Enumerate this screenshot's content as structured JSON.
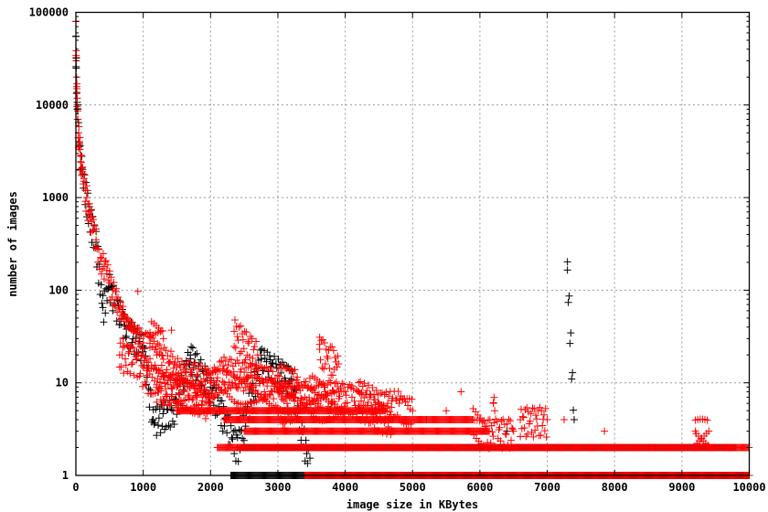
{
  "chart_data": {
    "type": "scatter",
    "title": "",
    "xlabel": "image size in KBytes",
    "ylabel": "number of images",
    "xlim": [
      0,
      10000
    ],
    "ylim": [
      1,
      100000
    ],
    "y_scale": "log",
    "grid": true,
    "legend": "none",
    "x_ticks": [
      "0",
      "1000",
      "2000",
      "3000",
      "4000",
      "5000",
      "6000",
      "7000",
      "8000",
      "9000",
      "10000"
    ],
    "y_ticks": [
      "1",
      "10",
      "100",
      "1000",
      "10000",
      "100000"
    ],
    "marker": "plus",
    "series": [
      {
        "color": "#000000",
        "points": [
          [
            0,
            55000
          ],
          [
            5,
            25000
          ],
          [
            20,
            9000
          ],
          [
            50,
            3800
          ],
          [
            100,
            1800
          ],
          [
            200,
            650
          ],
          [
            300,
            330
          ],
          [
            400,
            65
          ],
          [
            500,
            110
          ],
          [
            750,
            38
          ],
          [
            1000,
            25
          ],
          [
            1150,
            4
          ],
          [
            1450,
            5
          ],
          [
            1700,
            20
          ],
          [
            2000,
            9
          ],
          [
            2400,
            2
          ],
          [
            2750,
            18
          ],
          [
            2900,
            15
          ],
          [
            3200,
            11
          ],
          [
            3500,
            1
          ],
          [
            4500,
            6
          ],
          [
            5200,
            4
          ],
          [
            6400,
            3
          ],
          [
            7300,
            165
          ],
          [
            7400,
            4
          ],
          [
            8600,
            2
          ]
        ],
        "bands": [
          {
            "y": 1,
            "from": 2300,
            "to": 10000
          },
          {
            "y": 2,
            "from": 2450,
            "to": 9800
          }
        ]
      },
      {
        "color": "#ff0000",
        "points": [
          [
            0,
            80000
          ],
          [
            5,
            30000
          ],
          [
            10,
            20000
          ],
          [
            15,
            15000
          ],
          [
            20,
            10000
          ],
          [
            30,
            7000
          ],
          [
            40,
            5000
          ],
          [
            50,
            4000
          ],
          [
            60,
            3300
          ],
          [
            70,
            2800
          ],
          [
            80,
            2400
          ],
          [
            100,
            1900
          ],
          [
            120,
            1500
          ],
          [
            140,
            1200
          ],
          [
            160,
            1000
          ],
          [
            180,
            850
          ],
          [
            200,
            700
          ],
          [
            230,
            550
          ],
          [
            260,
            450
          ],
          [
            300,
            350
          ],
          [
            340,
            280
          ],
          [
            380,
            220
          ],
          [
            420,
            180
          ],
          [
            460,
            150
          ],
          [
            500,
            120
          ],
          [
            550,
            100
          ],
          [
            600,
            80
          ],
          [
            650,
            65
          ],
          [
            700,
            55
          ],
          [
            750,
            48
          ],
          [
            800,
            42
          ],
          [
            850,
            38
          ],
          [
            900,
            35
          ],
          [
            950,
            30
          ],
          [
            1000,
            27
          ],
          [
            1100,
            24
          ],
          [
            1200,
            20
          ],
          [
            1300,
            18
          ],
          [
            1400,
            17
          ],
          [
            1500,
            15
          ],
          [
            1600,
            14
          ],
          [
            1700,
            13
          ],
          [
            1800,
            12
          ],
          [
            1900,
            11
          ],
          [
            2000,
            10
          ],
          [
            2200,
            10
          ],
          [
            2400,
            9
          ],
          [
            2600,
            9
          ],
          [
            2800,
            8
          ],
          [
            3000,
            8
          ],
          [
            3200,
            7
          ],
          [
            3400,
            7
          ],
          [
            3600,
            6
          ],
          [
            3800,
            6
          ],
          [
            4000,
            6
          ],
          [
            920,
            97
          ],
          [
            1420,
            37
          ],
          [
            2350,
            36
          ],
          [
            2700,
            20
          ],
          [
            3620,
            31
          ],
          [
            3620,
            23
          ],
          [
            3900,
            16
          ],
          [
            5720,
            8
          ],
          [
            6200,
            6
          ],
          [
            6220,
            5
          ],
          [
            7250,
            4
          ],
          [
            7850,
            3
          ],
          [
            9200,
            3
          ],
          [
            9400,
            3
          ],
          [
            1200,
            9
          ],
          [
            1600,
            8
          ],
          [
            2000,
            6
          ],
          [
            1100,
            35
          ],
          [
            1300,
            30
          ],
          [
            800,
            25
          ],
          [
            700,
            30
          ],
          [
            2500,
            13
          ],
          [
            3000,
            12
          ],
          [
            3300,
            10
          ],
          [
            4200,
            8
          ],
          [
            4500,
            6
          ],
          [
            4800,
            6
          ],
          [
            5000,
            5
          ],
          [
            5500,
            5
          ],
          [
            6600,
            4
          ],
          [
            7000,
            4
          ],
          [
            650,
            20
          ],
          [
            900,
            18
          ],
          [
            1050,
            12
          ],
          [
            1250,
            10
          ],
          [
            1500,
            9
          ],
          [
            1800,
            7
          ],
          [
            2200,
            14
          ],
          [
            2600,
            12
          ],
          [
            2900,
            11
          ],
          [
            3100,
            5
          ],
          [
            3500,
            9
          ],
          [
            3700,
            8
          ],
          [
            4100,
            7
          ],
          [
            4400,
            5
          ],
          [
            4700,
            4
          ],
          [
            5300,
            4
          ],
          [
            5900,
            4
          ],
          [
            6100,
            3
          ],
          [
            6500,
            3
          ]
        ],
        "bands": [
          {
            "y": 5,
            "from": 1500,
            "to": 4600
          },
          {
            "y": 4,
            "from": 2200,
            "to": 5900
          },
          {
            "y": 3,
            "from": 2500,
            "to": 6150
          },
          {
            "y": 2,
            "from": 2100,
            "to": 10000
          },
          {
            "y": 1,
            "from": 3400,
            "to": 10000
          }
        ]
      }
    ]
  }
}
